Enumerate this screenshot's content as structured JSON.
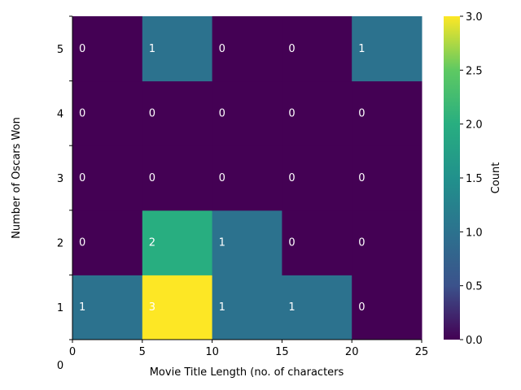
{
  "chart_data": {
    "type": "heatmap",
    "xlabel": "Movie Title Length (no. of characters",
    "ylabel": "Number of Oscars Won",
    "x_bin_edges": [
      0,
      5,
      10,
      15,
      20,
      25
    ],
    "x_tick_labels": [
      "0",
      "5",
      "10",
      "15",
      "20",
      "25"
    ],
    "y_rows": [
      1,
      2,
      3,
      4,
      5
    ],
    "y_tick_labels": [
      "1",
      "2",
      "3",
      "4",
      "5"
    ],
    "y_extra_label": "0",
    "counts": [
      [
        1,
        3,
        1,
        1,
        0
      ],
      [
        0,
        2,
        1,
        0,
        0
      ],
      [
        0,
        0,
        0,
        0,
        0
      ],
      [
        0,
        0,
        0,
        0,
        0
      ],
      [
        0,
        1,
        0,
        0,
        1
      ]
    ],
    "colorbar": {
      "label": "Count",
      "min": 0,
      "max": 3,
      "ticks": [
        "0.0",
        "0.5",
        "1.0",
        "1.5",
        "2.0",
        "2.5",
        "3.0"
      ],
      "colormap": "viridis"
    }
  }
}
